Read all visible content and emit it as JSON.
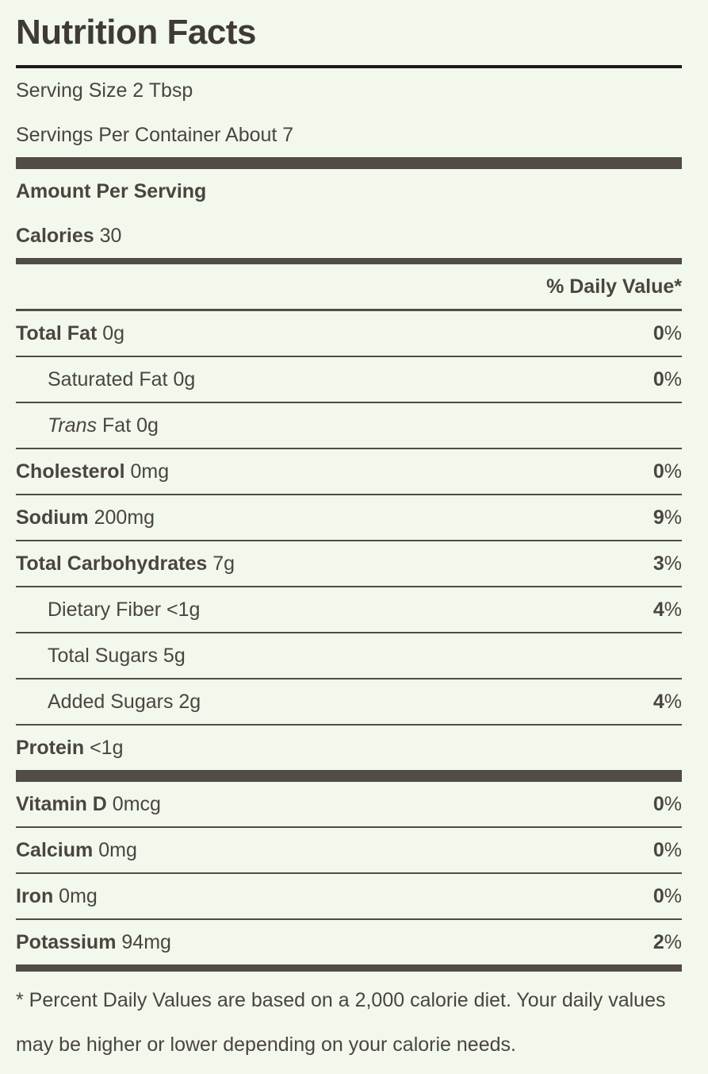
{
  "title": "Nutrition Facts",
  "serving_size": "Serving Size 2 Tbsp",
  "servings_per_container": "Servings Per Container About 7",
  "amount_per_serving": "Amount Per Serving",
  "calories": {
    "label": "Calories",
    "value": "30"
  },
  "daily_value_header": "% Daily Value*",
  "nutrients": [
    {
      "name": "Total Fat",
      "amount": "0g",
      "pct": "0",
      "bold": true
    },
    {
      "name": "Saturated Fat",
      "amount": "0g",
      "pct": "0",
      "sub": true
    },
    {
      "name": "Trans",
      "name_suffix": "Fat",
      "amount": "0g",
      "pct": "",
      "sub": true,
      "italic": true
    },
    {
      "name": "Cholesterol",
      "amount": "0mg",
      "pct": "0",
      "bold": true
    },
    {
      "name": "Sodium",
      "amount": "200mg",
      "pct": "9",
      "bold": true
    },
    {
      "name": "Total Carbohydrates",
      "amount": "7g",
      "pct": "3",
      "bold": true
    },
    {
      "name": "Dietary Fiber",
      "amount": "<1g",
      "pct": "4",
      "sub": true
    },
    {
      "name": "Total Sugars",
      "amount": "5g",
      "pct": "",
      "sub": true
    },
    {
      "name": "Added Sugars",
      "amount": "2g",
      "pct": "4",
      "sub": true
    },
    {
      "name": "Protein",
      "amount": "<1g",
      "pct": "",
      "bold": true
    }
  ],
  "vitamins": [
    {
      "name": "Vitamin D",
      "amount": "0mcg",
      "pct": "0"
    },
    {
      "name": "Calcium",
      "amount": "0mg",
      "pct": "0"
    },
    {
      "name": "Iron",
      "amount": "0mg",
      "pct": "0"
    },
    {
      "name": "Potassium",
      "amount": "94mg",
      "pct": "2"
    }
  ],
  "percent_sign": "%",
  "footnote": "* Percent Daily Values are based on a 2,000 calorie diet. Your daily values may be higher or lower depending on your calorie needs.",
  "colors": {
    "background": "#f2f8ec",
    "text": "#4a453f",
    "rule": "#514c46"
  }
}
